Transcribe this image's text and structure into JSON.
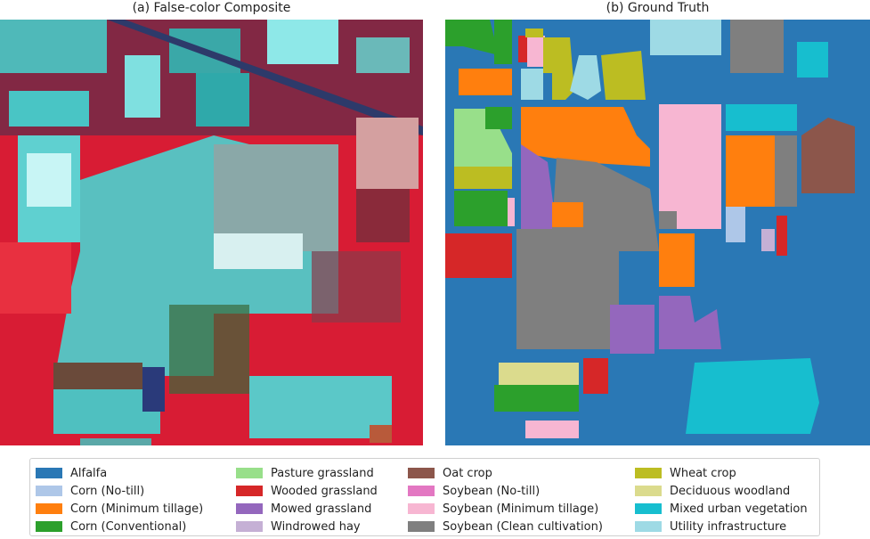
{
  "panels": {
    "left_title": "(a) False-color Composite",
    "right_title": "(b) Ground Truth"
  },
  "legend": [
    {
      "label": "Alfalfa",
      "color": "#2a78b5"
    },
    {
      "label": "Corn (No-till)",
      "color": "#aec7e8"
    },
    {
      "label": "Corn (Minimum tillage)",
      "color": "#ff7f0e"
    },
    {
      "label": "Corn (Conventional)",
      "color": "#2ca02c"
    },
    {
      "label": "Pasture grassland",
      "color": "#98df8a"
    },
    {
      "label": "Wooded grassland",
      "color": "#d62728"
    },
    {
      "label": "Mowed grassland",
      "color": "#9467bd"
    },
    {
      "label": "Windrowed hay",
      "color": "#c5b0d5"
    },
    {
      "label": "Oat crop",
      "color": "#8c564b"
    },
    {
      "label": "Soybean (No-till)",
      "color": "#e377c2"
    },
    {
      "label": "Soybean (Minimum tillage)",
      "color": "#f7b6d2"
    },
    {
      "label": "Soybean (Clean cultivation)",
      "color": "#7f7f7f"
    },
    {
      "label": "Wheat crop",
      "color": "#bcbd22"
    },
    {
      "label": "Deciduous woodland",
      "color": "#dbdb8d"
    },
    {
      "label": "Mixed urban vegetation",
      "color": "#17becf"
    },
    {
      "label": "Utility infrastructure",
      "color": "#9edae5"
    }
  ]
}
